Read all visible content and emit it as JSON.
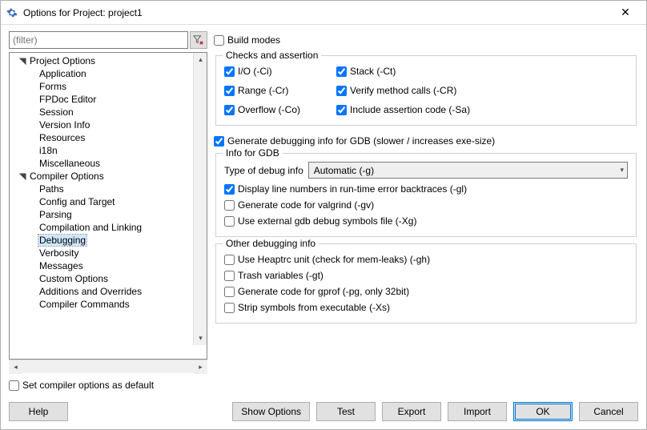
{
  "window": {
    "title": "Options for Project: project1"
  },
  "filter": {
    "placeholder": "(filter)"
  },
  "tree": {
    "groups": [
      {
        "label": "Project Options",
        "expanded": true,
        "children": [
          "Application",
          "Forms",
          "FPDoc Editor",
          "Session",
          "Version Info",
          "Resources",
          "i18n",
          "Miscellaneous"
        ]
      },
      {
        "label": "Compiler Options",
        "expanded": true,
        "children": [
          "Paths",
          "Config and Target",
          "Parsing",
          "Compilation and Linking",
          "Debugging",
          "Verbosity",
          "Messages",
          "Custom Options",
          "Additions and Overrides",
          "Compiler Commands"
        ]
      }
    ],
    "selected": "Debugging"
  },
  "right": {
    "build_modes": {
      "label": "Build modes",
      "checked": false
    },
    "checks_group": {
      "title": "Checks and assertion",
      "left": [
        {
          "key": "io",
          "label": "I/O (-Ci)",
          "checked": true
        },
        {
          "key": "range",
          "label": "Range (-Cr)",
          "checked": true
        },
        {
          "key": "overflow",
          "label": "Overflow (-Co)",
          "checked": true
        }
      ],
      "right": [
        {
          "key": "stack",
          "label": "Stack (-Ct)",
          "checked": true
        },
        {
          "key": "verify",
          "label": "Verify method calls (-CR)",
          "checked": true
        },
        {
          "key": "assert",
          "label": "Include assertion code (-Sa)",
          "checked": true
        }
      ]
    },
    "gen_debug": {
      "label": "Generate debugging info for GDB (slower / increases exe-size)",
      "checked": true
    },
    "gdb_group": {
      "title": "Info for GDB",
      "type_label": "Type of debug info",
      "type_value": "Automatic (-g)",
      "items": [
        {
          "label": "Display line numbers in run-time error backtraces (-gl)",
          "checked": true
        },
        {
          "label": "Generate code for valgrind (-gv)",
          "checked": false
        },
        {
          "label": "Use external gdb debug symbols file (-Xg)",
          "checked": false
        }
      ]
    },
    "other_group": {
      "title": "Other debugging info",
      "items": [
        {
          "label": "Use Heaptrc unit (check for mem-leaks) (-gh)",
          "checked": false
        },
        {
          "label": "Trash variables (-gt)",
          "checked": false
        },
        {
          "label": "Generate code for gprof (-pg, only 32bit)",
          "checked": false
        },
        {
          "label": "Strip symbols from executable (-Xs)",
          "checked": false
        }
      ]
    }
  },
  "footer": {
    "set_default": {
      "label": "Set compiler options as default",
      "checked": false
    },
    "buttons": {
      "help": "Help",
      "show_options": "Show Options",
      "test": "Test",
      "export": "Export",
      "import": "Import",
      "ok": "OK",
      "cancel": "Cancel"
    }
  }
}
